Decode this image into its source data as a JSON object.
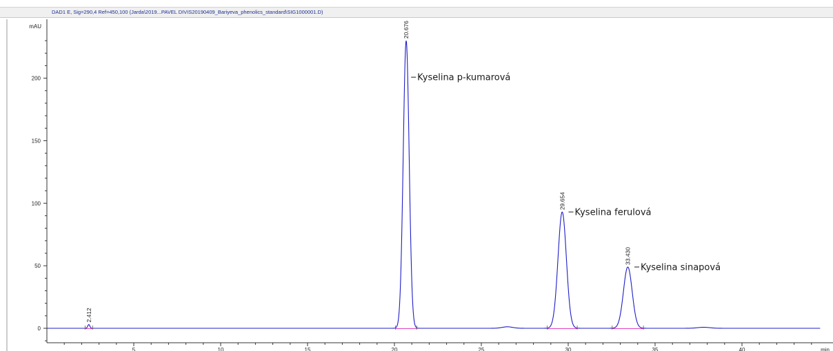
{
  "window": {
    "title": "DAD1 E, Sig=290,4 Ref=450,100 (Jarda\\2019...PAVEL DIVIS20190409_Bariyeva_phenolics_standard\\SIG1000001.D)",
    "title_color": "#1f2f8f"
  },
  "chart_data": {
    "type": "line",
    "ylabel": "mAU",
    "xlabel": "min",
    "xlim": [
      0,
      44.5
    ],
    "ylim": [
      -2,
      240
    ],
    "x_ticks": [
      5,
      10,
      15,
      20,
      25,
      30,
      35,
      40
    ],
    "y_ticks": [
      0,
      50,
      100,
      150,
      200
    ],
    "series_color": "#1c1cc8",
    "baseline_color": "#e040c0",
    "peaks": [
      {
        "rt": 2.412,
        "rt_label": "2.412",
        "height": 3,
        "sigma": 0.06,
        "compound": ""
      },
      {
        "rt": 20.676,
        "rt_label": "20.676",
        "height": 230,
        "sigma": 0.17,
        "compound": "Kyselina p-kumarová"
      },
      {
        "rt": 29.654,
        "rt_label": "29.654",
        "height": 93,
        "sigma": 0.24,
        "compound": "Kyselina ferulová"
      },
      {
        "rt": 33.43,
        "rt_label": "33.430",
        "height": 49,
        "sigma": 0.25,
        "compound": "Kyselina sinapová"
      }
    ],
    "minor_bumps": [
      {
        "rt": 26.5,
        "height": 1.2,
        "sigma": 0.3
      },
      {
        "rt": 37.8,
        "height": 0.8,
        "sigma": 0.35
      }
    ]
  }
}
